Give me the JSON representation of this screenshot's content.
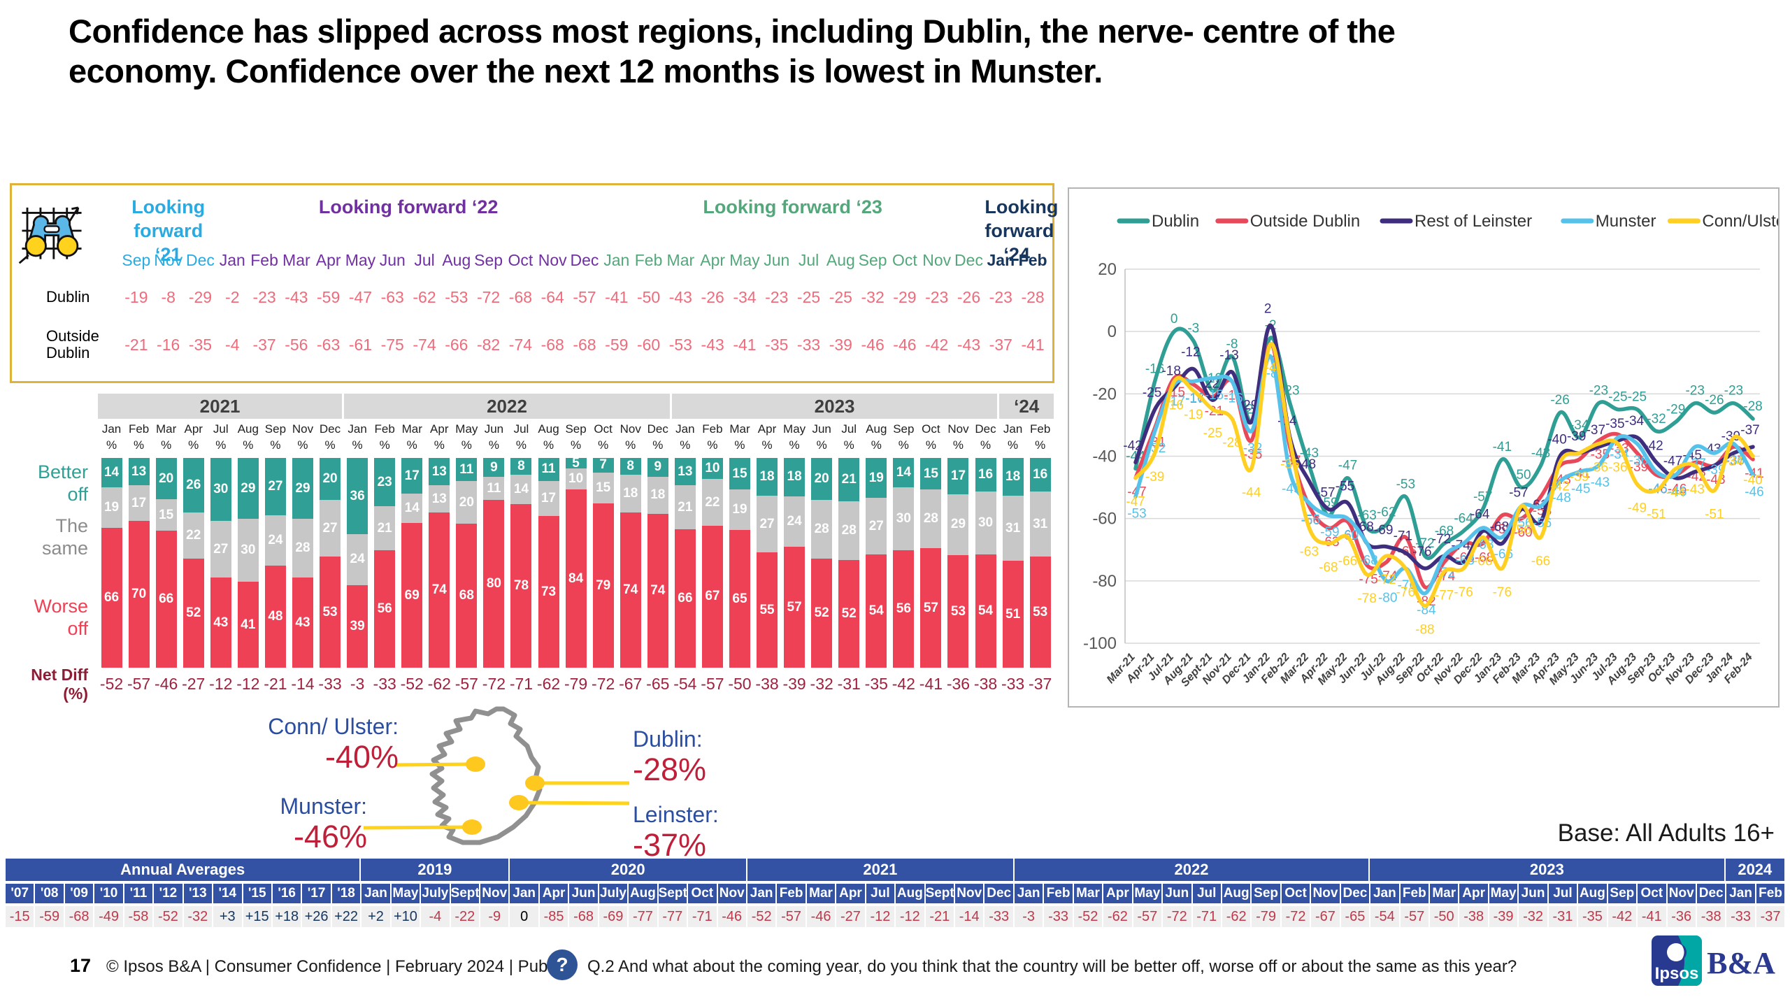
{
  "title": "Confidence has slipped across most regions, including Dublin, the nerve- centre of the economy. Confidence over the next 12 months is lowest in Munster.",
  "base_note": "Base: All Adults 16+",
  "map": {
    "callouts": [
      {
        "label": "Conn/ Ulster:",
        "value": "-40%"
      },
      {
        "label": "Munster:",
        "value": "-46%"
      },
      {
        "label": "Dublin:",
        "value": "-28%"
      },
      {
        "label": "Leinster:",
        "value": "-37%"
      }
    ]
  },
  "footer": {
    "page": "17",
    "source": "© Ipsos B&A | Consumer Confidence | February 2024 | Public",
    "q_mark": "?",
    "question": "Q.2 And what about the coming year, do you think that the country will be better off, worse off or about the same as this year?"
  },
  "logos": {
    "ipsos": "Ipsos",
    "ba": "B&A"
  },
  "chart_data": [
    {
      "id": "forward_region_table",
      "type": "table",
      "groups": [
        {
          "label": "Looking forward ‘21",
          "color": "#29abe2",
          "bold": false,
          "months": [
            "Sep",
            "Nov",
            "Dec"
          ]
        },
        {
          "label": "Looking forward ‘22",
          "color": "#7030a0",
          "bold": false,
          "months": [
            "Jan",
            "Feb",
            "Mar",
            "Apr",
            "May",
            "Jun",
            "Jul",
            "Aug",
            "Sep",
            "Oct",
            "Nov",
            "Dec"
          ]
        },
        {
          "label": "Looking forward ‘23",
          "color": "#54a77b",
          "bold": false,
          "months": [
            "Jan",
            "Feb",
            "Mar",
            "Apr",
            "May",
            "Jun",
            "Jul",
            "Aug",
            "Sep",
            "Oct",
            "Nov",
            "Dec"
          ]
        },
        {
          "label": "Looking forward ‘24",
          "color": "#17365d",
          "bold": true,
          "months": [
            "Jan",
            "Feb"
          ]
        }
      ],
      "rows": [
        {
          "label": "Dublin",
          "values": [
            -19,
            -8,
            -29,
            -2,
            -23,
            -43,
            -59,
            -47,
            -63,
            -62,
            -53,
            -72,
            -68,
            -64,
            -57,
            -41,
            -50,
            -43,
            -26,
            -34,
            -23,
            -25,
            -25,
            -32,
            -29,
            -23,
            -26,
            -23,
            -28
          ]
        },
        {
          "label": "Outside Dublin",
          "values": [
            -21,
            -16,
            -35,
            -4,
            -37,
            -56,
            -63,
            -61,
            -75,
            -74,
            -66,
            -82,
            -74,
            -68,
            -68,
            -59,
            -60,
            -53,
            -43,
            -41,
            -35,
            -33,
            -39,
            -46,
            -46,
            -42,
            -43,
            -37,
            -41
          ]
        }
      ]
    },
    {
      "id": "better_worse_stacked_bars",
      "type": "bar",
      "stack_labels": {
        "better": "Better off",
        "same": "The same",
        "worse": "Worse off",
        "net": "Net Diff (%)"
      },
      "colors": {
        "better": "#30a097",
        "same": "#c7c7c7",
        "worse": "#ee4155",
        "net_text": "#9e2240"
      },
      "year_groups": [
        {
          "label": "2021",
          "months": [
            "Jan",
            "Feb",
            "Mar",
            "Apr",
            "Jul",
            "Aug",
            "Sep",
            "Nov",
            "Dec"
          ]
        },
        {
          "label": "2022",
          "months": [
            "Jan",
            "Feb",
            "Mar",
            "Apr",
            "May",
            "Jun",
            "Jul",
            "Aug",
            "Sep",
            "Oct",
            "Nov",
            "Dec"
          ]
        },
        {
          "label": "2023",
          "months": [
            "Jan",
            "Feb",
            "Mar",
            "Apr",
            "May",
            "Jun",
            "Jul",
            "Aug",
            "Sep",
            "Oct",
            "Nov",
            "Dec"
          ]
        },
        {
          "label": "‘24",
          "months": [
            "Jan",
            "Feb"
          ]
        }
      ],
      "unit_label": "%",
      "better": [
        14,
        13,
        20,
        26,
        30,
        29,
        27,
        29,
        20,
        36,
        23,
        17,
        13,
        11,
        9,
        8,
        11,
        5,
        7,
        8,
        9,
        13,
        10,
        15,
        18,
        18,
        20,
        21,
        19,
        14,
        15,
        17,
        16,
        18,
        16
      ],
      "same": [
        19,
        17,
        15,
        22,
        27,
        30,
        24,
        28,
        27,
        24,
        21,
        14,
        13,
        20,
        11,
        14,
        17,
        10,
        15,
        18,
        18,
        21,
        22,
        19,
        27,
        24,
        28,
        28,
        27,
        30,
        28,
        29,
        30,
        31,
        31
      ],
      "worse": [
        66,
        70,
        66,
        52,
        43,
        41,
        48,
        43,
        53,
        39,
        56,
        69,
        74,
        68,
        80,
        78,
        73,
        84,
        79,
        74,
        74,
        66,
        67,
        65,
        55,
        57,
        52,
        52,
        54,
        56,
        57,
        53,
        54,
        51,
        53
      ],
      "net_diff": [
        -52,
        -57,
        -46,
        -27,
        -12,
        -12,
        -21,
        -14,
        -33,
        -3,
        -33,
        -52,
        -62,
        -57,
        -72,
        -71,
        -62,
        -79,
        -72,
        -67,
        -65,
        -54,
        -57,
        -50,
        -38,
        -39,
        -32,
        -31,
        -35,
        -42,
        -41,
        -36,
        -38,
        -33,
        -37
      ]
    },
    {
      "id": "region_confidence_lines",
      "type": "line",
      "x": [
        "Mar-21",
        "Apr-21",
        "Jul-21",
        "Aug-21",
        "Sept-21",
        "Nov-21",
        "Dec-21",
        "Jan-22",
        "Feb-22",
        "Mar-22",
        "Apr-22",
        "May-22",
        "Jun-22",
        "Jul-22",
        "Aug-22",
        "Sep-22",
        "Oct-22",
        "Nov-22",
        "Dec-22",
        "Jan-23",
        "Feb-23",
        "Mar-23",
        "Apr-23",
        "May-23",
        "Jun-23",
        "Jul-23",
        "Aug-23",
        "Sep-23",
        "Oct-23",
        "Nov-23",
        "Dec-23",
        "Jan-24",
        "Feb-24"
      ],
      "ylim": [
        -100,
        20
      ],
      "yticks": [
        20,
        0,
        -20,
        -40,
        -60,
        -80,
        -100
      ],
      "grid": true,
      "legend_position": "top",
      "series": [
        {
          "name": "Dublin",
          "color": "#2f9e94",
          "values": [
            -44,
            -16,
            0,
            -3,
            -19,
            -8,
            -29,
            -2,
            -23,
            -43,
            -59,
            -47,
            -63,
            -62,
            -53,
            -72,
            -68,
            -64,
            -57,
            -41,
            -50,
            -43,
            -26,
            -34,
            -23,
            -25,
            -25,
            -32,
            -29,
            -23,
            -26,
            -23,
            -28
          ]
        },
        {
          "name": "Outside Dublin",
          "color": "#e8495a",
          "values": [
            -47,
            -31,
            -15,
            -17,
            -21,
            -16,
            -35,
            -4,
            -37,
            -56,
            -63,
            -61,
            -75,
            -74,
            -66,
            -82,
            -74,
            -68,
            -68,
            -59,
            -60,
            -53,
            -43,
            -41,
            -35,
            -33,
            -39,
            -46,
            -46,
            -42,
            -43,
            -37,
            -41
          ]
        },
        {
          "name": "Rest of Leinster",
          "color": "#3f2d7e",
          "values": [
            -42,
            -25,
            -18,
            -12,
            -22,
            -13,
            -29,
            2,
            -34,
            -48,
            -57,
            -55,
            -68,
            -69,
            -71,
            -76,
            -72,
            -74,
            -64,
            -68,
            -57,
            -61,
            -40,
            -39,
            -37,
            -35,
            -34,
            -42,
            -47,
            -45,
            -43,
            -39,
            -37
          ]
        },
        {
          "name": "Munster",
          "color": "#56c2ea",
          "values": [
            -53,
            -32,
            -17,
            -16,
            -15,
            -16,
            -32,
            -8,
            -45,
            -55,
            -59,
            -60,
            -68,
            -80,
            -76,
            -84,
            -72,
            -68,
            -63,
            -66,
            -56,
            -56,
            -48,
            -45,
            -43,
            -34,
            -36,
            -45,
            -46,
            -37,
            -39,
            -36,
            -46
          ]
        },
        {
          "name": "Conn/Ulster",
          "color": "#ffcf21",
          "values": [
            -47,
            -39,
            -16,
            -19,
            -25,
            -28,
            -44,
            -4,
            -35,
            -63,
            -68,
            -66,
            -78,
            -72,
            -76,
            -88,
            -77,
            -76,
            -66,
            -76,
            -56,
            -66,
            -42,
            -39,
            -36,
            -36,
            -49,
            -51,
            -44,
            -43,
            -51,
            -34,
            -40
          ]
        }
      ]
    },
    {
      "id": "net_diff_history_table",
      "type": "table",
      "groups": [
        {
          "label": "Annual Averages",
          "cols": [
            "'07",
            "'08",
            "'09",
            "'10",
            "'11",
            "'12",
            "'13",
            "'14",
            "'15",
            "'16",
            "'17",
            "'18"
          ],
          "values": [
            "-15",
            "-59",
            "-68",
            "-49",
            "-58",
            "-52",
            "-32",
            "+3",
            "+15",
            "+18",
            "+26",
            "+22"
          ]
        },
        {
          "label": "2019",
          "cols": [
            "Jan",
            "May",
            "July",
            "Sept",
            "Nov"
          ],
          "values": [
            "+2",
            "+10",
            "-4",
            "-22",
            "-9"
          ]
        },
        {
          "label": "2020",
          "cols": [
            "Jan",
            "Apr",
            "Jun",
            "July",
            "Aug",
            "Sept",
            "Oct",
            "Nov"
          ],
          "values": [
            "0",
            "-85",
            "-68",
            "-69",
            "-77",
            "-77",
            "-71",
            "-46"
          ]
        },
        {
          "label": "2021",
          "cols": [
            "Jan",
            "Feb",
            "Mar",
            "Apr",
            "Jul",
            "Aug",
            "Sept",
            "Nov",
            "Dec"
          ],
          "values": [
            "-52",
            "-57",
            "-46",
            "-27",
            "-12",
            "-12",
            "-21",
            "-14",
            "-33"
          ]
        },
        {
          "label": "2022",
          "cols": [
            "Jan",
            "Feb",
            "Mar",
            "Apr",
            "May",
            "Jun",
            "Jul",
            "Aug",
            "Sep",
            "Oct",
            "Nov",
            "Dec"
          ],
          "values": [
            "-3",
            "-33",
            "-52",
            "-62",
            "-57",
            "-72",
            "-71",
            "-62",
            "-79",
            "-72",
            "-67",
            "-65"
          ]
        },
        {
          "label": "2023",
          "cols": [
            "Jan",
            "Feb",
            "Mar",
            "Apr",
            "May",
            "Jun",
            "Jul",
            "Aug",
            "Sep",
            "Oct",
            "Nov",
            "Dec"
          ],
          "values": [
            "-54",
            "-57",
            "-50",
            "-38",
            "-39",
            "-32",
            "-31",
            "-35",
            "-42",
            "-41",
            "-36",
            "-38"
          ]
        },
        {
          "label": "2024",
          "cols": [
            "Jan",
            "Feb"
          ],
          "values": [
            "-33",
            "-37"
          ]
        }
      ]
    }
  ]
}
